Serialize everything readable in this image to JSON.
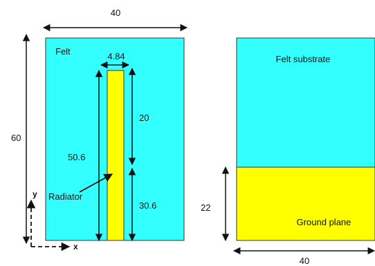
{
  "colors": {
    "substrate": "#33ffff",
    "metal": "#ffff00",
    "outline": "#333333",
    "dimension": "#111111"
  },
  "front_view": {
    "width_label": "40",
    "height_label": "60",
    "substrate_label": "Felt",
    "radiator_width_label": "4.84",
    "radiator_length_label": "50.6",
    "upper_segment_label": "20",
    "lower_segment_label": "30.6",
    "radiator_label": "Radiator",
    "axis_y_label": "y",
    "axis_x_label": "x"
  },
  "back_view": {
    "substrate_label": "Felt substrate",
    "ground_plane_label": "Ground plane",
    "ground_height_label": "22",
    "width_label": "40"
  }
}
